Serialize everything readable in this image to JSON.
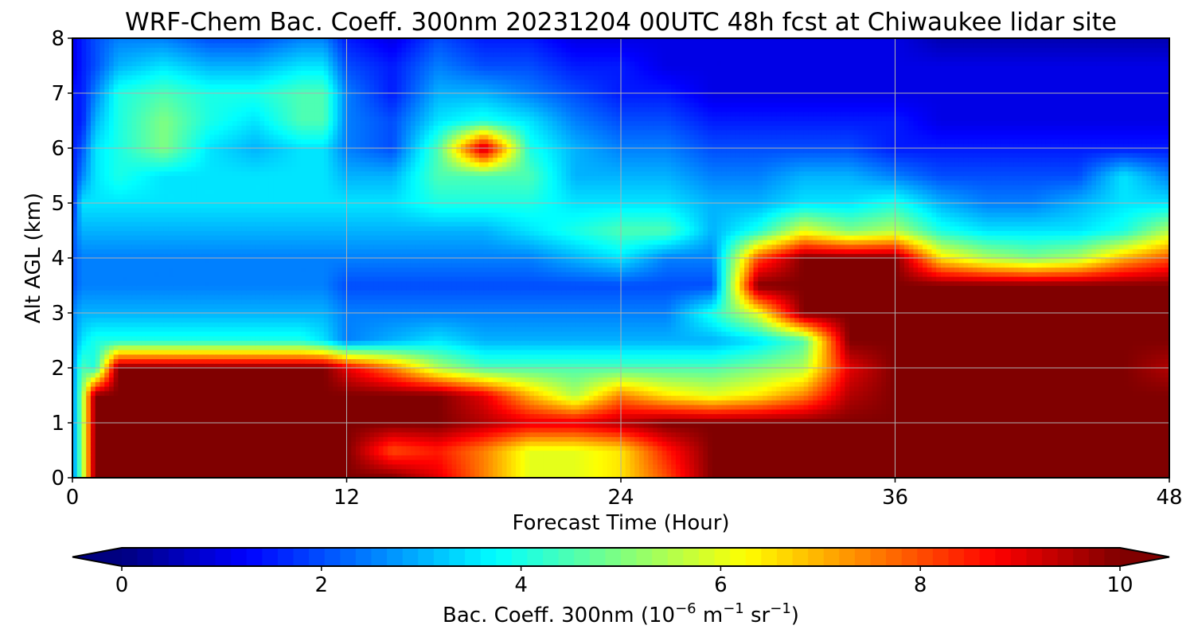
{
  "chart_data": {
    "type": "heatmap",
    "title": "WRF-Chem Bac. Coeff. 300nm  20231204 00UTC 48h fcst at Chiwaukee lidar site",
    "xlabel": "Forecast Time (Hour)",
    "ylabel": "Alt AGL (km)",
    "xlim": [
      0,
      48
    ],
    "ylim": [
      0,
      8
    ],
    "xticks": [
      0,
      12,
      24,
      36,
      48
    ],
    "yticks": [
      0,
      1,
      2,
      3,
      4,
      5,
      6,
      7,
      8
    ],
    "grid": true,
    "colormap": "jet",
    "colorbar": {
      "label_prefix": "Bac. Coeff. 300nm  (10",
      "label_exp1": "−6",
      "label_mid1": " m",
      "label_exp2": "−1",
      "label_mid2": " sr",
      "label_exp3": "−1",
      "label_suffix": ")",
      "min": 0,
      "max": 10,
      "ticks": [
        0,
        2,
        4,
        6,
        8,
        10
      ],
      "extend": "both",
      "orientation": "horizontal"
    },
    "grid_x": [
      0,
      0.4,
      1,
      2,
      4,
      6,
      8,
      10,
      11,
      12,
      14,
      16,
      18,
      20,
      22,
      24,
      26,
      28,
      30,
      32,
      34,
      36,
      38,
      40,
      42,
      44,
      46,
      48
    ],
    "grid_y": [
      0,
      0.5,
      1,
      1.5,
      2,
      2.5,
      3,
      3.5,
      4,
      4.5,
      5,
      5.5,
      6,
      6.5,
      7,
      7.5,
      8
    ],
    "values": [
      [
        2.5,
        5,
        10,
        10,
        10,
        10,
        10,
        10,
        10,
        10,
        10,
        9,
        7.5,
        6,
        6,
        6.5,
        8,
        10,
        10,
        10,
        10,
        10,
        10,
        10,
        10,
        10,
        10,
        10
      ],
      [
        2.5,
        5,
        10,
        10,
        10,
        10,
        10,
        10,
        10,
        10,
        8,
        8.5,
        7.5,
        6,
        6,
        6.5,
        8.5,
        10,
        10,
        10,
        10,
        10,
        10,
        10,
        10,
        10,
        10,
        10
      ],
      [
        2.5,
        5,
        10,
        10,
        10,
        10,
        10,
        10,
        10,
        10,
        10,
        10,
        9.5,
        9,
        9,
        9.5,
        10,
        10,
        10,
        10,
        10,
        10,
        10,
        10,
        10,
        10,
        10,
        10
      ],
      [
        2.5,
        5,
        10,
        10,
        10,
        10,
        10,
        10,
        10,
        10,
        10,
        10,
        9,
        7,
        5.5,
        7.5,
        6.5,
        6,
        6.5,
        7.5,
        9.5,
        10,
        10,
        10,
        10,
        10,
        10,
        10
      ],
      [
        2.5,
        4.5,
        4,
        10,
        10,
        10,
        10,
        10,
        10,
        9,
        7.5,
        5.5,
        4.5,
        4.5,
        4.5,
        4.5,
        4.5,
        4.5,
        5,
        5.5,
        9,
        10,
        10,
        10,
        10,
        10,
        10,
        9.5
      ],
      [
        2.5,
        3.5,
        4,
        4,
        4,
        4,
        4,
        4,
        3.5,
        2.5,
        3,
        3.5,
        3,
        3,
        3,
        3,
        3,
        3,
        3.5,
        4.5,
        10,
        10,
        10,
        10,
        10,
        10,
        10,
        10
      ],
      [
        2.5,
        3,
        3,
        3,
        3,
        3,
        3,
        3,
        3,
        2.5,
        2.5,
        2.5,
        2.5,
        2.5,
        2.5,
        2.5,
        2.5,
        4,
        6,
        10,
        10,
        10,
        10,
        10,
        10,
        10,
        10,
        10
      ],
      [
        2,
        2.5,
        2.5,
        2.5,
        2.5,
        2.5,
        2.5,
        2.5,
        2.5,
        2,
        2,
        2,
        2,
        2,
        2,
        2,
        2,
        2,
        10,
        10,
        10,
        10,
        10,
        10,
        10,
        10,
        10,
        10
      ],
      [
        2,
        2.5,
        2.5,
        2.5,
        2.5,
        2.5,
        2.5,
        2.5,
        2.5,
        2.5,
        2.5,
        2.5,
        2.5,
        2.5,
        3,
        3.5,
        2.5,
        2.5,
        8,
        10,
        10,
        10,
        6.5,
        5.5,
        5,
        5.5,
        7,
        8
      ],
      [
        2,
        3,
        3,
        3,
        3,
        3,
        3,
        3,
        3,
        3,
        3,
        3,
        3,
        3.5,
        4,
        4.5,
        4.5,
        3,
        4,
        6,
        5,
        5.5,
        4,
        3.5,
        3.5,
        3.5,
        4,
        5.5
      ],
      [
        1.5,
        3.5,
        3.5,
        3.5,
        3.5,
        3.5,
        3.5,
        3.5,
        3.5,
        3.5,
        3.5,
        4,
        4,
        4,
        3.5,
        3.5,
        3.5,
        3,
        3,
        3.5,
        3.5,
        4,
        3,
        2.5,
        2.5,
        3,
        3.5,
        3.5
      ],
      [
        1.5,
        2.5,
        3.5,
        4,
        3.5,
        3.5,
        3.5,
        3.5,
        3.5,
        3,
        3,
        4.5,
        4.5,
        4.5,
        3,
        3,
        3,
        2.5,
        2.5,
        3,
        3,
        2.5,
        2,
        2,
        2,
        2,
        3.5,
        2.5
      ],
      [
        1.5,
        2,
        3.5,
        4,
        5,
        3.5,
        3,
        3.5,
        3.5,
        2.5,
        2,
        4.5,
        9.5,
        4,
        3,
        2.5,
        2.5,
        2,
        2,
        2,
        2,
        1.5,
        1.5,
        1.5,
        1.5,
        1.5,
        1.5,
        1.5
      ],
      [
        1.5,
        1.5,
        3,
        4,
        5,
        4,
        3.5,
        4.5,
        4.5,
        2.5,
        2,
        3.5,
        4,
        3.5,
        2.5,
        2,
        2,
        1.5,
        1.5,
        1.5,
        1.5,
        1.5,
        1,
        1,
        1,
        1,
        1,
        1
      ],
      [
        1.5,
        1.5,
        2.5,
        4,
        4.5,
        4,
        4,
        4.5,
        4.5,
        2.5,
        1.5,
        3,
        3,
        2.5,
        2,
        1.5,
        1.5,
        1,
        1,
        1,
        1,
        1,
        1,
        1,
        1,
        1,
        1,
        1
      ],
      [
        1,
        1.5,
        2,
        3,
        3.5,
        3,
        3,
        3.5,
        3.5,
        2,
        1.5,
        2.5,
        2,
        2,
        1.5,
        1.5,
        1,
        1,
        1,
        1,
        1,
        1,
        1,
        1,
        1,
        1,
        1,
        1
      ],
      [
        1,
        1.5,
        2,
        2.5,
        2.5,
        2,
        2,
        2.5,
        2.5,
        1.5,
        1,
        2,
        1.5,
        1.5,
        1,
        1,
        1,
        1,
        1,
        1,
        1,
        1,
        0.5,
        0.5,
        0.5,
        0.5,
        0.5,
        0.5
      ]
    ]
  }
}
